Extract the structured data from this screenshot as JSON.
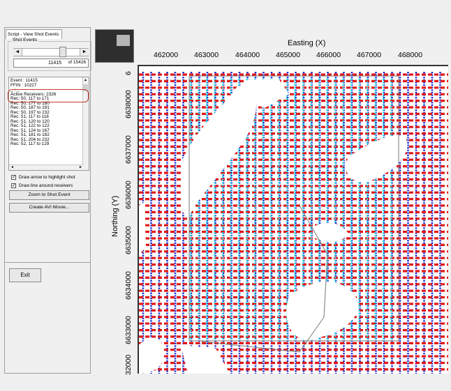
{
  "left_panel": {
    "tab_label": "Script - View Shot Events",
    "group_title": "Shot Events",
    "scroll_left": "◄",
    "scroll_right": "►",
    "current_shot": "11415",
    "shot_total": "of 15426",
    "event_lines": [
      "Event : 11415",
      "FFIN : 10227",
      "_ : _",
      "Active Receivers: 2326",
      "Rec: 50, 117 to 171",
      "Rec: 50, 177 to 180",
      "Rec: 50, 187 to 191",
      "Rec: 50, 197 to 232",
      "Rec: 51, 117 to 118",
      "Rec: 51, 120 to 120",
      "Rec: 51, 122 to 122",
      "Rec: 51, 124 to 167",
      "Rec: 51, 181 to 182",
      "Rec: 51, 204 to 232",
      "Rec: 52, 117 to 129"
    ],
    "checkbox_arrow_label": "Draw arrow to highlight shot",
    "checkbox_line_label": "Draw line around receivers",
    "checkbox_mark": "✓",
    "zoom_button": "Zoom to Shot Event",
    "avi_button": "Create AVI Movie...",
    "exit_button": "Exit"
  },
  "map": {
    "x_title": "Easting (X)",
    "y_title": "Northing (Y)",
    "x_ticks": [
      "462000",
      "463000",
      "464000",
      "465000",
      "466000",
      "467000",
      "468000"
    ],
    "y_ticks": [
      "6638000",
      "6637000",
      "6636000",
      "6635000",
      "6634000",
      "6633000",
      "32000"
    ],
    "y_top_partial": "6",
    "colors": {
      "receiver_line": "#1a2fd0",
      "shot_line": "#e01818",
      "active_receivers": "#2ee6e6",
      "outline": "#777777"
    }
  }
}
